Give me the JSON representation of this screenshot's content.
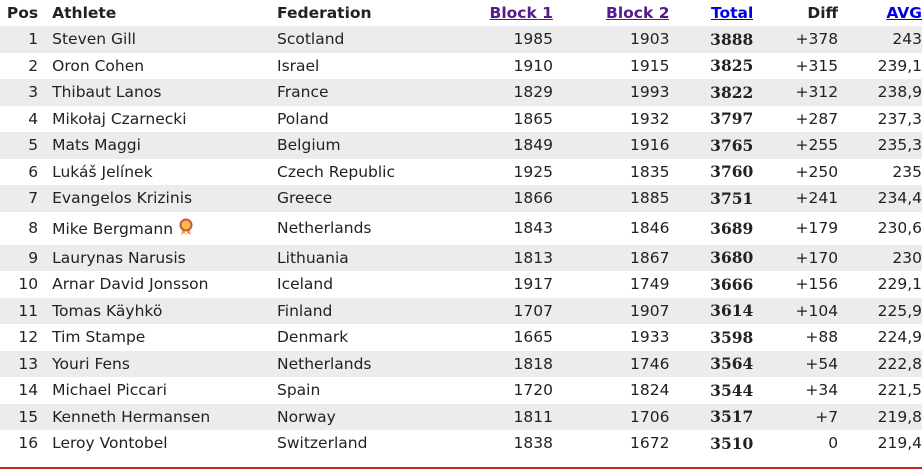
{
  "table": {
    "headers": [
      "Pos",
      "Athlete",
      "Federation",
      "Block 1",
      "Block 2",
      "Total",
      "Diff",
      "AVG"
    ],
    "rows": [
      [
        "1",
        "Steven Gill",
        "Scotland",
        "1985",
        "1903",
        "3888",
        "+378",
        "243"
      ],
      [
        "2",
        "Oron Cohen",
        "Israel",
        "1910",
        "1915",
        "3825",
        "+315",
        "239,1"
      ],
      [
        "3",
        "Thibaut Lanos",
        "France",
        "1829",
        "1993",
        "3822",
        "+312",
        "238,9"
      ],
      [
        "4",
        "Mikołaj Czarnecki",
        "Poland",
        "1865",
        "1932",
        "3797",
        "+287",
        "237,3"
      ],
      [
        "5",
        "Mats Maggi",
        "Belgium",
        "1849",
        "1916",
        "3765",
        "+255",
        "235,3"
      ],
      [
        "6",
        "Lukáš Jelínek",
        "Czech Republic",
        "1925",
        "1835",
        "3760",
        "+250",
        "235"
      ],
      [
        "7",
        "Evangelos Krizinis",
        "Greece",
        "1866",
        "1885",
        "3751",
        "+241",
        "234,4"
      ],
      [
        "8",
        "Mike Bergmann",
        "Netherlands",
        "1843",
        "1846",
        "3689",
        "+179",
        "230,6"
      ],
      [
        "9",
        "Laurynas Narusis",
        "Lithuania",
        "1813",
        "1867",
        "3680",
        "+170",
        "230"
      ],
      [
        "10",
        "Arnar David Jonsson",
        "Iceland",
        "1917",
        "1749",
        "3666",
        "+156",
        "229,1"
      ],
      [
        "11",
        "Tomas Käyhkö",
        "Finland",
        "1707",
        "1907",
        "3614",
        "+104",
        "225,9"
      ],
      [
        "12",
        "Tim Stampe",
        "Denmark",
        "1665",
        "1933",
        "3598",
        "+88",
        "224,9"
      ],
      [
        "13",
        "Youri Fens",
        "Netherlands",
        "1818",
        "1746",
        "3564",
        "+54",
        "222,8"
      ],
      [
        "14",
        "Michael Piccari",
        "Spain",
        "1720",
        "1824",
        "3544",
        "+34",
        "221,5"
      ],
      [
        "15",
        "Kenneth Hermansen",
        "Norway",
        "1811",
        "1706",
        "3517",
        "+7",
        "219,8"
      ],
      [
        "16",
        "Leroy Vontobel",
        "Switzerland",
        "1838",
        "1672",
        "3510",
        "0",
        "219,4"
      ]
    ]
  }
}
